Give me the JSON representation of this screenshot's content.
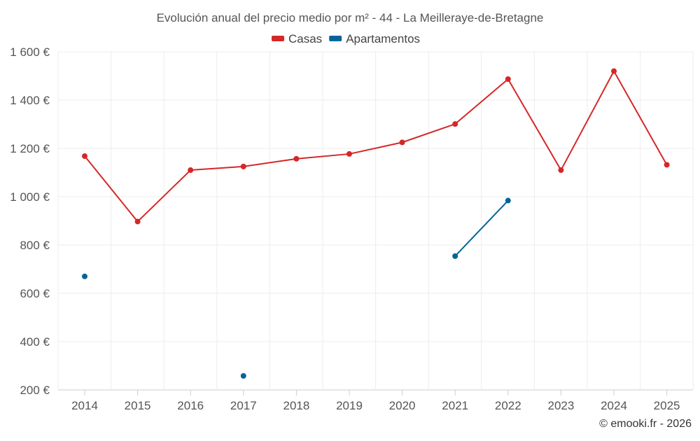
{
  "chart_data": {
    "type": "line",
    "title": "Evolución anual del precio medio por m² - 44 - La Meilleraye-de-Bretagne",
    "xlabel": "",
    "ylabel": "",
    "categories": [
      "2014",
      "2015",
      "2016",
      "2017",
      "2018",
      "2019",
      "2020",
      "2021",
      "2022",
      "2023",
      "2024",
      "2025"
    ],
    "ylim": [
      200,
      1600
    ],
    "yticks": [
      200,
      400,
      600,
      800,
      1000,
      1200,
      1400,
      1600
    ],
    "ytick_labels": [
      "200 €",
      "400 €",
      "600 €",
      "800 €",
      "1 000 €",
      "1 200 €",
      "1 400 €",
      "1 600 €"
    ],
    "grid": true,
    "legend_position": "top-center",
    "series": [
      {
        "name": "Casas",
        "color": "#d62728",
        "values": [
          1168,
          897,
          1110,
          1125,
          1157,
          1177,
          1225,
          1301,
          1487,
          1110,
          1520,
          1132
        ]
      },
      {
        "name": "Apartamentos",
        "color": "#006699",
        "values": [
          670,
          null,
          null,
          258,
          null,
          null,
          null,
          754,
          984,
          null,
          null,
          null
        ]
      }
    ],
    "credit": "© emooki.fr - 2026"
  }
}
